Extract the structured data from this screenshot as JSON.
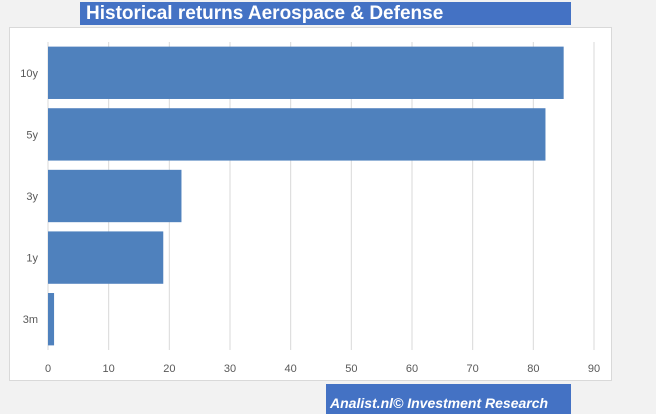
{
  "header": {
    "title": "Historical returns Aerospace & Defense"
  },
  "footer": {
    "credit": "Analist.nl© Investment Research"
  },
  "colors": {
    "bar": "#4f81bd",
    "title_bg": "#4472c4",
    "grid": "#d9d9d9",
    "axis_text": "#595959"
  },
  "chart_data": {
    "type": "bar",
    "orientation": "horizontal",
    "categories": [
      "10y",
      "5y",
      "3y",
      "1y",
      "3m"
    ],
    "values": [
      85,
      82,
      22,
      19,
      1
    ],
    "xlim": [
      0,
      90
    ],
    "xticks": [
      0,
      10,
      20,
      30,
      40,
      50,
      60,
      70,
      80,
      90
    ],
    "grid": "vertical",
    "legend": "none"
  }
}
